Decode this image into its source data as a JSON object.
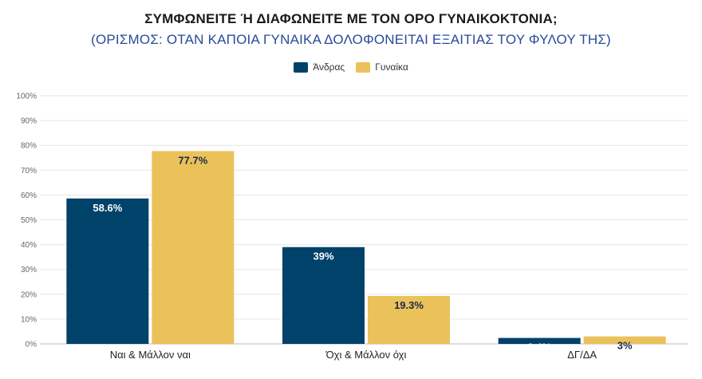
{
  "chart_data": {
    "type": "bar",
    "title": "ΣΥΜΦΩΝΕΙΤΕ Ή ΔΙΑΦΩΝΕΙΤΕ ΜΕ ΤΟΝ ΟΡΟ ΓΥΝΑΙΚΟΚΤΟΝΙΑ;",
    "subtitle": "(ΟΡΙΣΜΟΣ: ΟΤΑΝ ΚΑΠΟΙΑ ΓΥΝΑΙΚΑ ΔΟΛΟΦΟΝΕΙΤΑΙ ΕΞΑΙΤΙΑΣ ΤΟΥ ΦΥΛΟΥ ΤΗΣ)",
    "categories": [
      "Ναι & Μάλλον ναι",
      "Όχι & Μάλλον όχι",
      "ΔΓ/ΔΑ"
    ],
    "series": [
      {
        "name": "Άνδρας",
        "color": "#01426a",
        "values": [
          58.6,
          39,
          2.4
        ],
        "labels": [
          "58.6%",
          "39%",
          "2.4%"
        ],
        "label_color": "#ffffff"
      },
      {
        "name": "Γυναίκα",
        "color": "#ebc15a",
        "values": [
          77.7,
          19.3,
          3
        ],
        "labels": [
          "77.7%",
          "19.3%",
          "3%"
        ],
        "label_color": "#1a2a4a"
      }
    ],
    "ylim": [
      0,
      100
    ],
    "yticks": [
      "0%",
      "10%",
      "20%",
      "30%",
      "40%",
      "50%",
      "60%",
      "70%",
      "80%",
      "90%",
      "100%"
    ],
    "grid": true,
    "legend": "top-center"
  }
}
